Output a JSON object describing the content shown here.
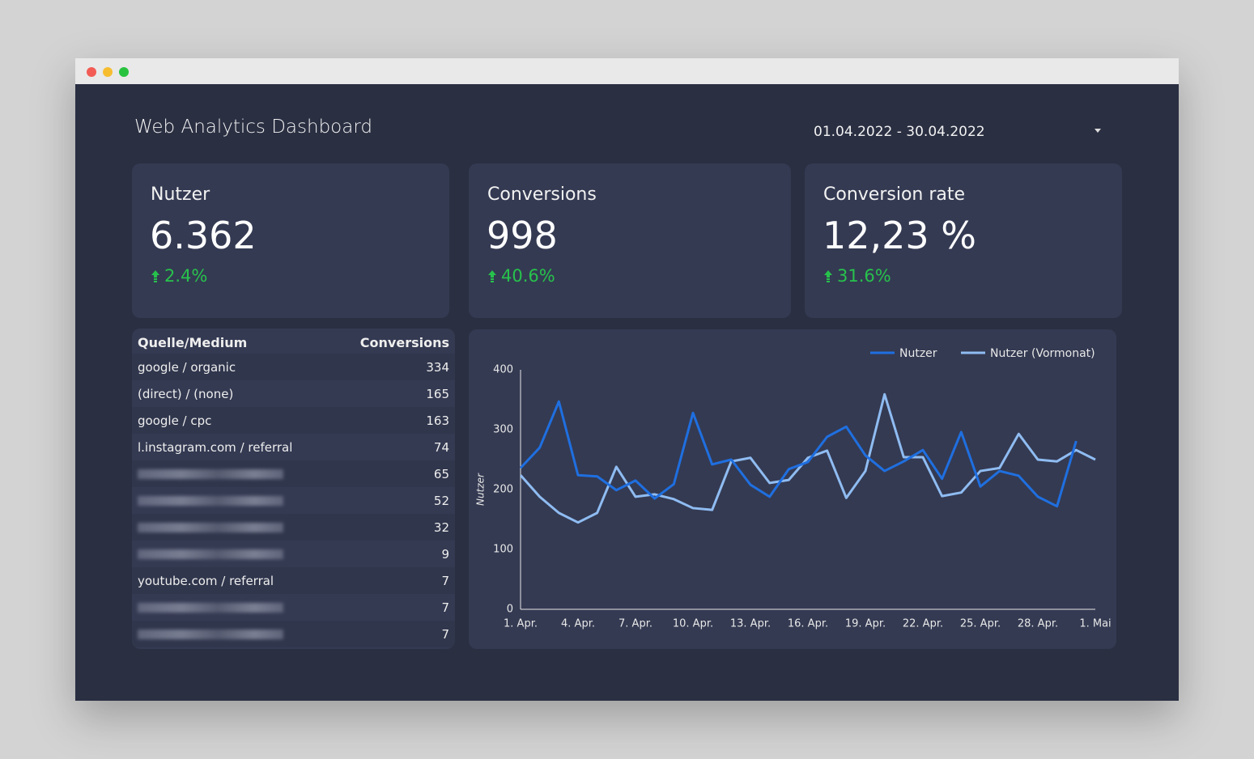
{
  "header": {
    "title": "Web Analytics Dashboard",
    "date_range": "01.04.2022 - 30.04.2022"
  },
  "kpis": [
    {
      "label": "Nutzer",
      "value": "6.362",
      "change": "2.4%"
    },
    {
      "label": "Conversions",
      "value": "998",
      "change": "40.6%"
    },
    {
      "label": "Conversion rate",
      "value": "12,23 %",
      "change": "31.6%"
    }
  ],
  "table": {
    "columns": [
      "Quelle/Medium",
      "Conversions"
    ],
    "rows": [
      [
        "google / organic",
        334
      ],
      [
        "(direct) / (none)",
        165
      ],
      [
        "google / cpc",
        163
      ],
      [
        "l.instagram.com / referral",
        74
      ],
      [
        null,
        65
      ],
      [
        null,
        52
      ],
      [
        null,
        32
      ],
      [
        null,
        9
      ],
      [
        "youtube.com / referral",
        7
      ],
      [
        null,
        7
      ],
      [
        null,
        7
      ]
    ]
  },
  "chart_data": {
    "type": "line",
    "y_label": "Nutzer",
    "categories": [
      "1. Apr.",
      null,
      null,
      "4. Apr.",
      null,
      null,
      "7. Apr.",
      null,
      null,
      "10. Apr.",
      null,
      null,
      "13. Apr.",
      null,
      null,
      "16. Apr.",
      null,
      null,
      "19. Apr.",
      null,
      null,
      "22. Apr.",
      null,
      null,
      "25. Apr.",
      null,
      null,
      "28. Apr.",
      null,
      null,
      "1. Mai"
    ],
    "series": [
      {
        "name": "Nutzer",
        "color": "#1f6fe0",
        "values": [
          236,
          270,
          347,
          224,
          222,
          199,
          215,
          185,
          209,
          328,
          242,
          250,
          208,
          188,
          234,
          246,
          288,
          305,
          257,
          231,
          247,
          266,
          218,
          296,
          205,
          231,
          223,
          188,
          172,
          281,
          null
        ]
      },
      {
        "name": "Nutzer (Vormonat)",
        "color": "#8fbcf2",
        "values": [
          224,
          188,
          161,
          145,
          161,
          238,
          188,
          192,
          184,
          169,
          166,
          247,
          253,
          211,
          216,
          253,
          265,
          186,
          231,
          359,
          254,
          254,
          189,
          195,
          231,
          236,
          293,
          250,
          247,
          266,
          250
        ]
      }
    ],
    "ylim": [
      0,
      400
    ],
    "yticks": [
      0,
      100,
      200,
      300,
      400
    ],
    "grid": false,
    "legend": "top-right"
  }
}
